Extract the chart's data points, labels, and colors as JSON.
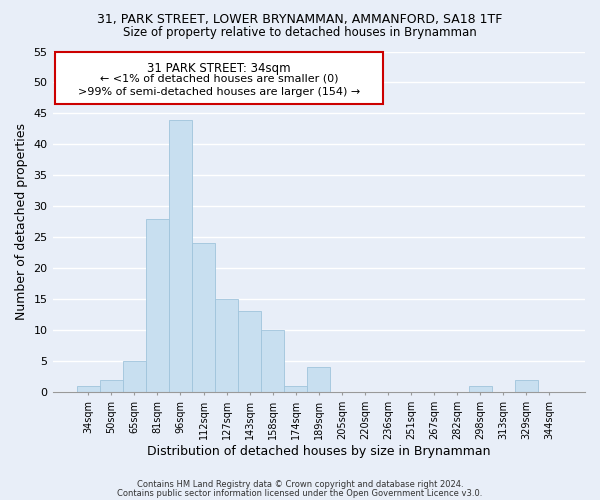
{
  "title_line1": "31, PARK STREET, LOWER BRYNAMMAN, AMMANFORD, SA18 1TF",
  "title_line2": "Size of property relative to detached houses in Brynamman",
  "xlabel": "Distribution of detached houses by size in Brynamman",
  "ylabel": "Number of detached properties",
  "bar_color": "#c8dff0",
  "bar_edge_color": "#a0c4dc",
  "categories": [
    "34sqm",
    "50sqm",
    "65sqm",
    "81sqm",
    "96sqm",
    "112sqm",
    "127sqm",
    "143sqm",
    "158sqm",
    "174sqm",
    "189sqm",
    "205sqm",
    "220sqm",
    "236sqm",
    "251sqm",
    "267sqm",
    "282sqm",
    "298sqm",
    "313sqm",
    "329sqm",
    "344sqm"
  ],
  "values": [
    1,
    2,
    5,
    28,
    44,
    24,
    15,
    13,
    10,
    1,
    4,
    0,
    0,
    0,
    0,
    0,
    0,
    1,
    0,
    2,
    0
  ],
  "ylim": [
    0,
    55
  ],
  "yticks": [
    0,
    5,
    10,
    15,
    20,
    25,
    30,
    35,
    40,
    45,
    50,
    55
  ],
  "annotation_title": "31 PARK STREET: 34sqm",
  "annotation_line1": "← <1% of detached houses are smaller (0)",
  "annotation_line2": ">99% of semi-detached houses are larger (154) →",
  "annotation_box_color": "#ffffff",
  "annotation_box_edge_color": "#cc0000",
  "footnote1": "Contains HM Land Registry data © Crown copyright and database right 2024.",
  "footnote2": "Contains public sector information licensed under the Open Government Licence v3.0.",
  "background_color": "#e8eef8",
  "grid_color": "#ffffff"
}
